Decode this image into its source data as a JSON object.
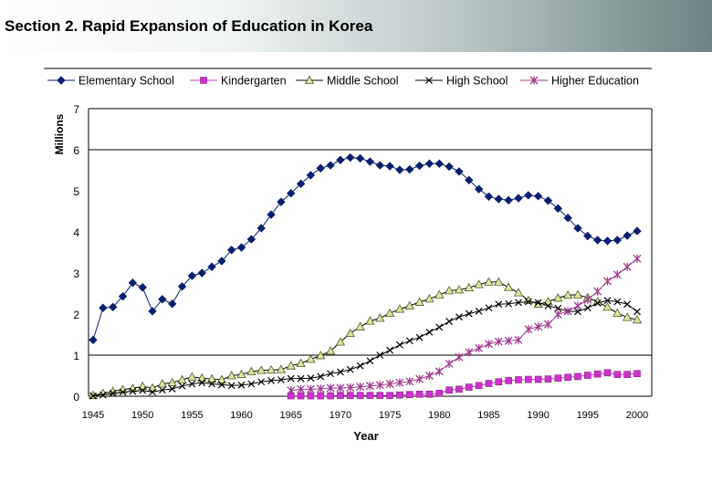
{
  "slide": {
    "title": "Section 2. Rapid Expansion of Education in Korea"
  },
  "chart_data": {
    "type": "line",
    "title": "",
    "xlabel": "Year",
    "ylabel": "Millions",
    "xlim": [
      1945,
      2000
    ],
    "ylim": [
      0,
      7
    ],
    "xticks": [
      "1945",
      "1950",
      "1955",
      "1960",
      "1965",
      "1970",
      "1975",
      "1980",
      "1985",
      "1990",
      "1995",
      "2000"
    ],
    "yticks": [
      "0",
      "1",
      "2",
      "3",
      "4",
      "5",
      "6",
      "7"
    ],
    "gridlines": "horizontal at 1, 6 and 7",
    "legend_position": "top",
    "series": [
      {
        "name": "Elementary School",
        "marker": "diamond",
        "color": "#0a1f6e",
        "x": [
          1945,
          1946,
          1947,
          1948,
          1949,
          1950,
          1951,
          1952,
          1953,
          1954,
          1955,
          1956,
          1957,
          1958,
          1959,
          1960,
          1961,
          1962,
          1963,
          1964,
          1965,
          1966,
          1967,
          1968,
          1969,
          1970,
          1971,
          1972,
          1973,
          1974,
          1975,
          1976,
          1977,
          1978,
          1979,
          1980,
          1981,
          1982,
          1983,
          1984,
          1985,
          1986,
          1987,
          1988,
          1989,
          1990,
          1991,
          1992,
          1993,
          1994,
          1995,
          1996,
          1997,
          1998,
          1999,
          2000
        ],
        "values": [
          1.37,
          2.15,
          2.17,
          2.43,
          2.76,
          2.65,
          2.07,
          2.36,
          2.25,
          2.67,
          2.93,
          3.0,
          3.15,
          3.29,
          3.56,
          3.62,
          3.82,
          4.09,
          4.42,
          4.73,
          4.94,
          5.17,
          5.38,
          5.55,
          5.62,
          5.75,
          5.81,
          5.79,
          5.71,
          5.62,
          5.6,
          5.51,
          5.52,
          5.61,
          5.66,
          5.66,
          5.59,
          5.47,
          5.26,
          5.04,
          4.86,
          4.8,
          4.77,
          4.82,
          4.89,
          4.87,
          4.76,
          4.57,
          4.34,
          4.09,
          3.9,
          3.8,
          3.78,
          3.8,
          3.91,
          4.02
        ]
      },
      {
        "name": "Kindergarten",
        "marker": "square",
        "color": "#cc33cc",
        "x": [
          1965,
          1966,
          1967,
          1968,
          1969,
          1970,
          1971,
          1972,
          1973,
          1974,
          1975,
          1976,
          1977,
          1978,
          1979,
          1980,
          1981,
          1982,
          1983,
          1984,
          1985,
          1986,
          1987,
          1988,
          1989,
          1990,
          1991,
          1992,
          1993,
          1994,
          1995,
          1996,
          1997,
          1998,
          1999,
          2000
        ],
        "values": [
          0.01,
          0.01,
          0.01,
          0.01,
          0.01,
          0.02,
          0.02,
          0.02,
          0.02,
          0.02,
          0.02,
          0.03,
          0.04,
          0.05,
          0.05,
          0.07,
          0.15,
          0.17,
          0.22,
          0.26,
          0.31,
          0.35,
          0.38,
          0.4,
          0.41,
          0.41,
          0.42,
          0.44,
          0.46,
          0.48,
          0.51,
          0.54,
          0.57,
          0.53,
          0.53,
          0.55
        ]
      },
      {
        "name": "Middle School",
        "marker": "triangle",
        "color": "#d8e6a0",
        "x": [
          1945,
          1946,
          1947,
          1948,
          1949,
          1950,
          1951,
          1952,
          1953,
          1954,
          1955,
          1956,
          1957,
          1958,
          1959,
          1960,
          1961,
          1962,
          1963,
          1964,
          1965,
          1966,
          1967,
          1968,
          1969,
          1970,
          1971,
          1972,
          1973,
          1974,
          1975,
          1976,
          1977,
          1978,
          1979,
          1980,
          1981,
          1982,
          1983,
          1984,
          1985,
          1986,
          1987,
          1988,
          1989,
          1990,
          1991,
          1992,
          1993,
          1994,
          1995,
          1996,
          1997,
          1998,
          1999,
          2000
        ],
        "values": [
          0.02,
          0.07,
          0.12,
          0.16,
          0.19,
          0.24,
          0.2,
          0.3,
          0.33,
          0.4,
          0.47,
          0.44,
          0.42,
          0.4,
          0.5,
          0.53,
          0.6,
          0.63,
          0.64,
          0.65,
          0.74,
          0.8,
          0.9,
          0.99,
          1.1,
          1.32,
          1.53,
          1.69,
          1.83,
          1.9,
          2.02,
          2.12,
          2.2,
          2.29,
          2.37,
          2.47,
          2.57,
          2.59,
          2.64,
          2.72,
          2.78,
          2.78,
          2.65,
          2.52,
          2.33,
          2.24,
          2.3,
          2.39,
          2.46,
          2.47,
          2.4,
          2.3,
          2.17,
          2.02,
          1.92,
          1.86
        ]
      },
      {
        "name": "High School",
        "marker": "x",
        "color": "#000000",
        "x": [
          1945,
          1946,
          1947,
          1948,
          1949,
          1950,
          1951,
          1952,
          1953,
          1954,
          1955,
          1956,
          1957,
          1958,
          1959,
          1960,
          1961,
          1962,
          1963,
          1964,
          1965,
          1966,
          1967,
          1968,
          1969,
          1970,
          1971,
          1972,
          1973,
          1974,
          1975,
          1976,
          1977,
          1978,
          1979,
          1980,
          1981,
          1982,
          1983,
          1984,
          1985,
          1986,
          1987,
          1988,
          1989,
          1990,
          1991,
          1992,
          1993,
          1994,
          1995,
          1996,
          1997,
          1998,
          1999,
          2000
        ],
        "values": [
          0.01,
          0.03,
          0.07,
          0.1,
          0.12,
          0.14,
          0.1,
          0.15,
          0.18,
          0.25,
          0.3,
          0.33,
          0.3,
          0.28,
          0.26,
          0.27,
          0.3,
          0.35,
          0.38,
          0.4,
          0.43,
          0.43,
          0.44,
          0.48,
          0.55,
          0.59,
          0.65,
          0.74,
          0.86,
          1.0,
          1.12,
          1.25,
          1.35,
          1.43,
          1.56,
          1.68,
          1.82,
          1.93,
          2.01,
          2.07,
          2.15,
          2.24,
          2.25,
          2.28,
          2.3,
          2.28,
          2.2,
          2.14,
          2.07,
          2.06,
          2.15,
          2.27,
          2.33,
          2.3,
          2.24,
          2.06
        ]
      },
      {
        "name": "Higher Education",
        "marker": "asterisk",
        "color": "#9f3c8d",
        "x": [
          1965,
          1966,
          1967,
          1968,
          1969,
          1970,
          1971,
          1972,
          1973,
          1974,
          1975,
          1976,
          1977,
          1978,
          1979,
          1980,
          1981,
          1982,
          1983,
          1984,
          1985,
          1986,
          1987,
          1988,
          1989,
          1990,
          1991,
          1992,
          1993,
          1994,
          1995,
          1996,
          1997,
          1998,
          1999,
          2000
        ],
        "values": [
          0.14,
          0.17,
          0.17,
          0.18,
          0.2,
          0.2,
          0.21,
          0.23,
          0.25,
          0.27,
          0.3,
          0.33,
          0.36,
          0.42,
          0.5,
          0.6,
          0.79,
          0.95,
          1.07,
          1.17,
          1.27,
          1.33,
          1.35,
          1.37,
          1.63,
          1.69,
          1.75,
          1.99,
          2.07,
          2.2,
          2.35,
          2.55,
          2.8,
          2.96,
          3.15,
          3.35
        ]
      }
    ]
  }
}
